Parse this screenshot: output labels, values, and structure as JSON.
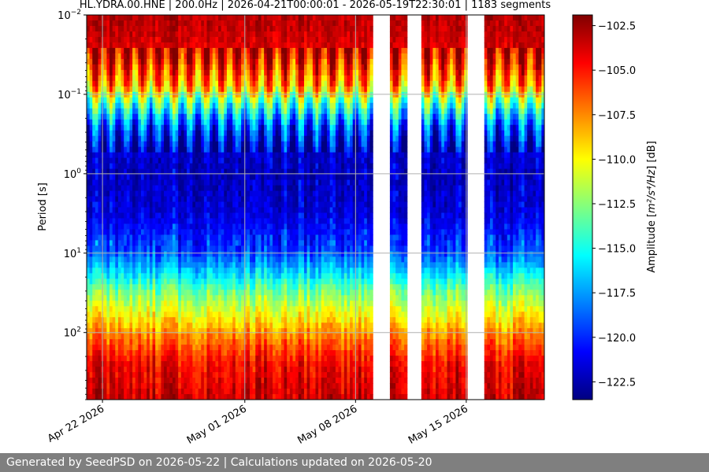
{
  "chart_data": {
    "type": "heatmap",
    "title": "HL.YDRA.00.HNE | 200.0Hz | 2026-04-21T00:00:01 - 2026-05-19T22:30:01 | 1183 segments",
    "ylabel": "Period [s]",
    "y_scale": "log",
    "y_inverted": true,
    "ylim": [
      0.01,
      700
    ],
    "y_ticks": [
      {
        "value": 0.01,
        "base": "10",
        "exp": "−2"
      },
      {
        "value": 0.1,
        "base": "10",
        "exp": "−1"
      },
      {
        "value": 1,
        "base": "10",
        "exp": "0"
      },
      {
        "value": 10,
        "base": "10",
        "exp": "1"
      },
      {
        "value": 100,
        "base": "10",
        "exp": "2"
      }
    ],
    "xlim": [
      "2026-04-21T00:00:01",
      "2026-05-19T22:30:01"
    ],
    "x_ticks": [
      {
        "value": "2026-04-22",
        "label": "Apr 22 2026"
      },
      {
        "value": "2026-05-01",
        "label": "May 01 2026"
      },
      {
        "value": "2026-05-08",
        "label": "May 08 2026"
      },
      {
        "value": "2026-05-15",
        "label": "May 15 2026"
      }
    ],
    "data_gaps": [
      [
        "2026-05-09T00:00:00",
        "2026-05-10T02:00:00"
      ],
      [
        "2026-05-11T04:00:00",
        "2026-05-12T04:00:00"
      ],
      [
        "2026-05-15T00:00:00",
        "2026-05-16T02:00:00"
      ]
    ],
    "grid": true,
    "colorbar": {
      "label_prefix": "Amplitude [",
      "label_math": "m²/s⁴/Hz",
      "label_suffix": "] [dB]",
      "range": [
        -123.5,
        -101.9
      ],
      "colormap": "jet",
      "ticks": [
        -102.5,
        -105.0,
        -107.5,
        -110.0,
        -112.5,
        -115.0,
        -117.5,
        -120.0,
        -122.5
      ],
      "tick_labels": [
        "−102.5",
        "−105.0",
        "−107.5",
        "−110.0",
        "−112.5",
        "−115.0",
        "−117.5",
        "−120.0",
        "−122.5"
      ]
    },
    "spectrum_profile": [
      {
        "period": 0.01,
        "db": -103
      },
      {
        "period": 0.03,
        "db": -104
      },
      {
        "period": 0.08,
        "db": -108
      },
      {
        "period": 0.12,
        "db": -113
      },
      {
        "period": 0.25,
        "db": -119
      },
      {
        "period": 0.5,
        "db": -122
      },
      {
        "period": 1,
        "db": -122.5
      },
      {
        "period": 3,
        "db": -122
      },
      {
        "period": 8,
        "db": -120
      },
      {
        "period": 15,
        "db": -117
      },
      {
        "period": 30,
        "db": -113
      },
      {
        "period": 60,
        "db": -110
      },
      {
        "period": 120,
        "db": -107
      },
      {
        "period": 250,
        "db": -104.5
      },
      {
        "period": 700,
        "db": -103.5
      }
    ]
  },
  "footer": {
    "text": "Generated by SeedPSD on 2026-05-22 | Calculations updated on 2026-05-20"
  }
}
